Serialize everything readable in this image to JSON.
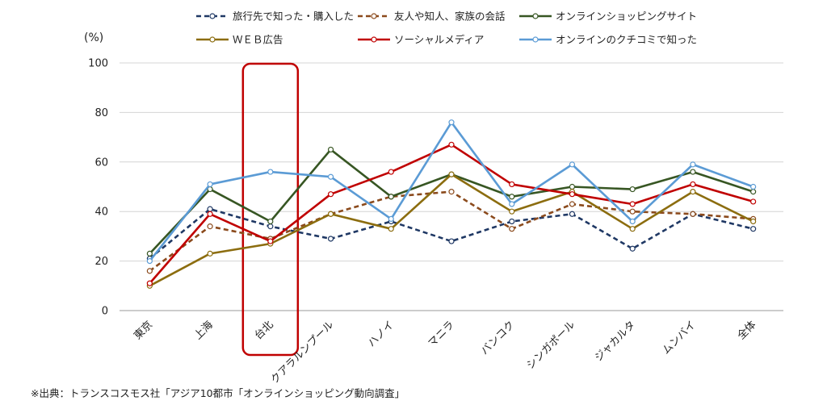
{
  "chart_data": {
    "type": "line",
    "ylabel": "(%)",
    "ylim": [
      0,
      100
    ],
    "yticks": [
      0,
      20,
      40,
      60,
      80,
      100
    ],
    "grid": true,
    "legend_position": "top",
    "categories": [
      "東京",
      "上海",
      "台北",
      "クアラルンプール",
      "ハノイ",
      "マニラ",
      "バンコク",
      "シンガポール",
      "ジャカルタ",
      "ムンバイ",
      "全体"
    ],
    "highlighted_category": "台北",
    "series": [
      {
        "name": "旅行先で知った・購入した",
        "color": "#1f3864",
        "dashed": true,
        "values": [
          21,
          41,
          34,
          29,
          36,
          28,
          36,
          39,
          25,
          39,
          33
        ]
      },
      {
        "name": "友人や知人、家族の会話",
        "color": "#8b4a1c",
        "dashed": true,
        "values": [
          16,
          34,
          29,
          39,
          46,
          48,
          33,
          43,
          40,
          39,
          37
        ]
      },
      {
        "name": "オンラインショッピングサイト",
        "color": "#375623",
        "dashed": false,
        "values": [
          23,
          49,
          36,
          65,
          46,
          55,
          46,
          50,
          49,
          56,
          48
        ]
      },
      {
        "name": "ＷＥＢ広告",
        "color": "#8c6d0f",
        "dashed": false,
        "values": [
          10,
          23,
          27,
          39,
          33,
          55,
          40,
          48,
          33,
          48,
          36
        ]
      },
      {
        "name": "ソーシャルメディア",
        "color": "#c00000",
        "dashed": false,
        "values": [
          11,
          39,
          28,
          47,
          56,
          67,
          51,
          47,
          43,
          51,
          44
        ]
      },
      {
        "name": "オンラインのクチコミで知った",
        "color": "#5b9bd5",
        "dashed": false,
        "values": [
          20,
          51,
          56,
          54,
          37,
          76,
          43,
          59,
          36,
          59,
          50
        ]
      }
    ]
  },
  "source_note": "※出典：トランスコスモス社「アジア10都市「オンラインショッピング動向調査」",
  "highlight_color": "#c00000"
}
